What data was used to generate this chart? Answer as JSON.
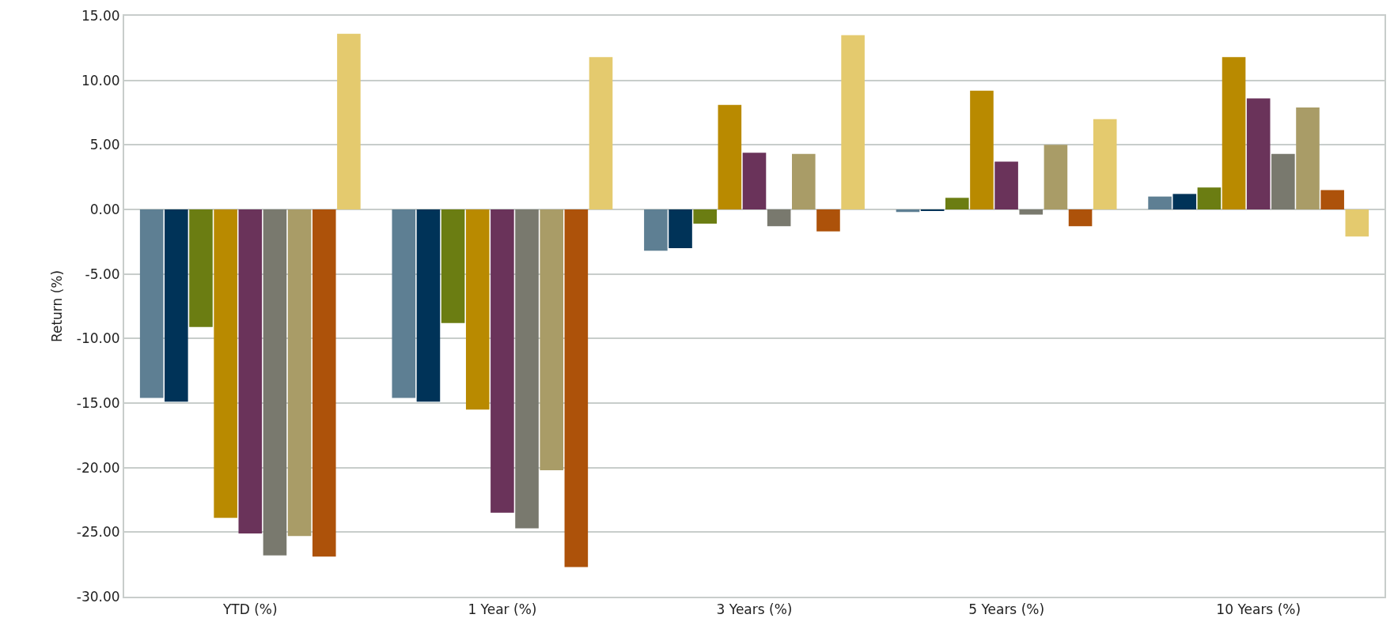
{
  "chart_data": {
    "type": "bar",
    "ylabel": "Return (%)",
    "categories": [
      "YTD (%)",
      "1 Year (%)",
      "3 Years (%)",
      "5 Years (%)",
      "10 Years (%)"
    ],
    "series": [
      {
        "color": "#5e7f93",
        "values": [
          -14.6,
          -14.6,
          -3.2,
          -0.2,
          1.0
        ]
      },
      {
        "color": "#003358",
        "values": [
          -14.9,
          -14.9,
          -3.0,
          -0.1,
          1.2
        ]
      },
      {
        "color": "#6b7d12",
        "values": [
          -9.1,
          -8.8,
          -1.1,
          0.9,
          1.7
        ]
      },
      {
        "color": "#b98a00",
        "values": [
          -23.9,
          -15.5,
          8.1,
          9.2,
          11.8
        ]
      },
      {
        "color": "#6a335a",
        "values": [
          -25.1,
          -23.5,
          4.4,
          3.7,
          8.6
        ]
      },
      {
        "color": "#79796e",
        "values": [
          -26.8,
          -24.7,
          -1.3,
          -0.4,
          4.3
        ]
      },
      {
        "color": "#a99c67",
        "values": [
          -25.3,
          -20.2,
          4.3,
          5.0,
          7.9
        ]
      },
      {
        "color": "#ad520a",
        "values": [
          -26.9,
          -27.7,
          -1.7,
          -1.3,
          1.5
        ]
      },
      {
        "color": "#e4ca6e",
        "values": [
          13.6,
          11.8,
          13.5,
          7.0,
          -2.1
        ]
      }
    ],
    "ylim": [
      -30,
      15
    ],
    "yticks": [
      {
        "value": -30,
        "label": "-30.00"
      },
      {
        "value": -25,
        "label": "-25.00"
      },
      {
        "value": -20,
        "label": "-20.00"
      },
      {
        "value": -15,
        "label": "-15.00"
      },
      {
        "value": -10,
        "label": "-10.00"
      },
      {
        "value": -5,
        "label": "-5.00"
      },
      {
        "value": 0,
        "label": "0.00"
      },
      {
        "value": 5,
        "label": "5.00"
      },
      {
        "value": 10,
        "label": "10.00"
      },
      {
        "value": 15,
        "label": "15.00"
      }
    ],
    "grid": "y"
  }
}
